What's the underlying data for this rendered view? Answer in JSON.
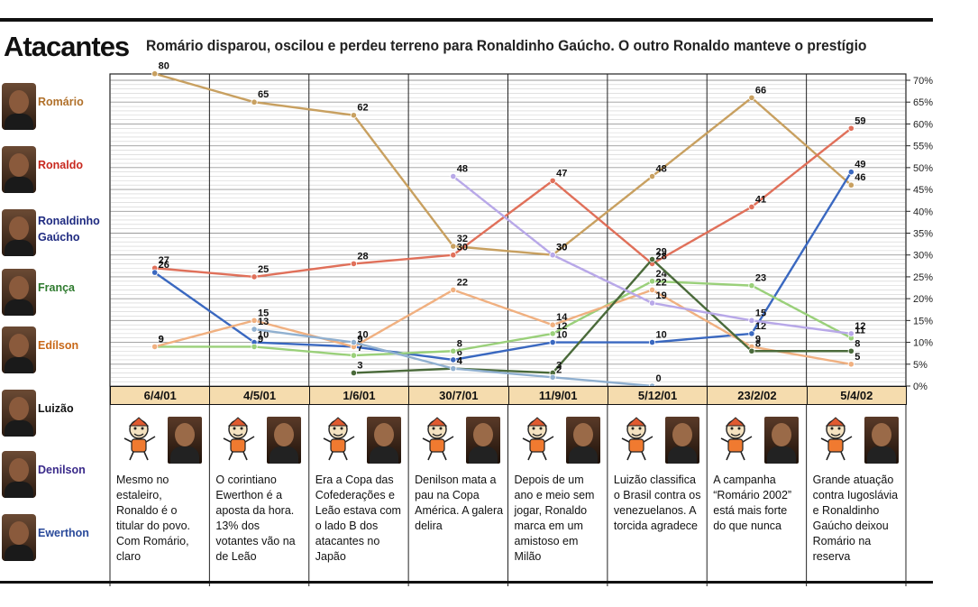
{
  "header": {
    "title": "Atacantes",
    "subtitle": "Romário disparou, oscilou e perdeu terreno para Ronaldinho Gaúcho. O outro Ronaldo manteve o prestígio"
  },
  "players": [
    {
      "name": "Romário",
      "color": "#b0702a"
    },
    {
      "name": "Ronaldo",
      "color": "#c8281e"
    },
    {
      "name": "Ronaldinho Gaúcho",
      "color": "#1e2a80"
    },
    {
      "name": "França",
      "color": "#2e7a2e"
    },
    {
      "name": "Edílson",
      "color": "#c86818"
    },
    {
      "name": "Luizão",
      "color": "#111111"
    },
    {
      "name": "Denilson",
      "color": "#3a2a8a"
    },
    {
      "name": "Ewerthon",
      "color": "#2a4a9a"
    }
  ],
  "chart_data": {
    "type": "line",
    "title": "",
    "xlabel": "",
    "ylabel": "",
    "ylim": [
      0,
      70
    ],
    "yticks": [
      "0%",
      "5%",
      "10%",
      "15%",
      "20%",
      "25%",
      "30%",
      "35%",
      "40%",
      "45%",
      "50%",
      "55%",
      "60%",
      "65%",
      "70%"
    ],
    "x": [
      "6/4/01",
      "4/5/01",
      "1/6/01",
      "30/7/01",
      "11/9/01",
      "5/12/01",
      "23/2/02",
      "5/4/02"
    ],
    "series": [
      {
        "name": "Romário",
        "color": "#c8a060",
        "values": [
          80,
          65,
          62,
          32,
          30,
          48,
          66,
          46
        ],
        "labels": [
          "80",
          "65",
          "62",
          "32",
          "30",
          "48",
          "66",
          "46"
        ]
      },
      {
        "name": "Ronaldo",
        "color": "#e0705a",
        "values": [
          27,
          25,
          28,
          30,
          47,
          28,
          41,
          59
        ],
        "labels": [
          "27",
          "25",
          "28",
          "30",
          "47",
          "28",
          "41",
          "59"
        ]
      },
      {
        "name": "Ronaldinho Gaúcho",
        "color": "#3a68c0",
        "values": [
          26,
          10,
          9,
          6,
          10,
          10,
          12,
          49
        ],
        "labels": [
          "26",
          "10",
          "9",
          "6",
          "10",
          "10",
          "12",
          "49"
        ]
      },
      {
        "name": "França",
        "color": "#9ad07a",
        "values": [
          9,
          9,
          7,
          8,
          12,
          24,
          23,
          11
        ],
        "labels": [
          "9",
          "9",
          "7",
          "8",
          "12",
          "24",
          "23",
          "11"
        ]
      },
      {
        "name": "Edílson",
        "color": "#f0b080",
        "values": [
          9,
          15,
          9,
          22,
          14,
          22,
          9,
          5
        ],
        "labels": [
          "9",
          "15",
          "9",
          "22",
          "14",
          "22",
          "9",
          "5"
        ]
      },
      {
        "name": "Luizão",
        "color": "#4a6a3a",
        "values": [
          null,
          null,
          3,
          4,
          3,
          29,
          8,
          8
        ],
        "labels": [
          "",
          "",
          "3",
          "4",
          "3",
          "29",
          "8",
          "8"
        ]
      },
      {
        "name": "Denilson",
        "color": "#b8a8e8",
        "values": [
          null,
          null,
          null,
          48,
          30,
          19,
          15,
          12
        ],
        "labels": [
          "",
          "",
          "",
          "48",
          "30",
          "19",
          "15",
          "12"
        ]
      },
      {
        "name": "Ewerthon",
        "color": "#90b0d0",
        "values": [
          null,
          13,
          10,
          4,
          2,
          0,
          null,
          null
        ],
        "labels": [
          "",
          "13",
          "10",
          "4",
          "2",
          "0",
          "",
          ""
        ]
      }
    ]
  },
  "notes": [
    "Mesmo no estaleiro, Ronaldo é o titular do povo. Com Romário, claro",
    "O corintiano Ewerthon é a aposta da hora. 13% dos votantes vão na de Leão",
    "Era a Copa das Cofederações e Leão estava com o lado B dos atacantes no Japão",
    "Denilson mata a pau na Copa América. A galera delira",
    "Depois de um ano e meio sem jogar, Ronaldo marca em um amistoso em Milão",
    "Luizão classifica o Brasil contra os venezuelanos. A torcida agradece",
    "A campanha “Romário 2002” está mais forte do que nunca",
    "Grande atuação contra Iugoslávia e Ronaldinho Gaúcho deixou Romário na reserva"
  ]
}
